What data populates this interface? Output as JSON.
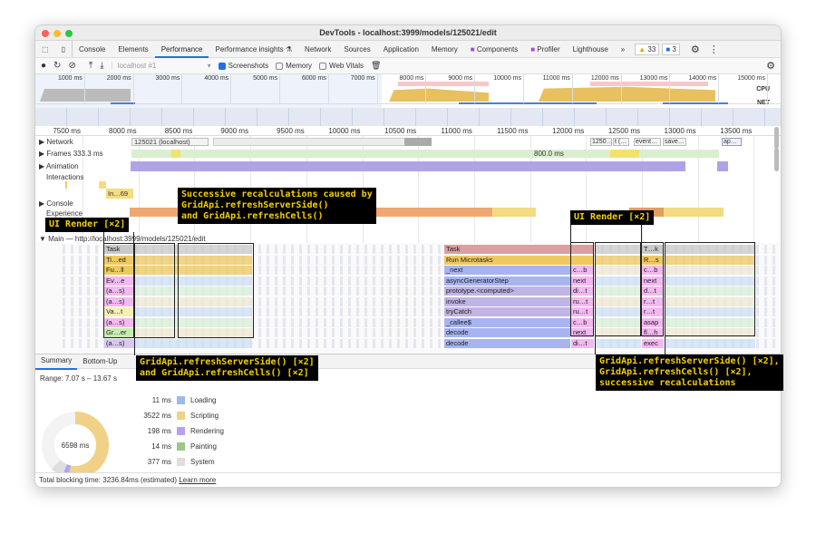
{
  "window": {
    "title": "DevTools - localhost:3999/models/125021/edit"
  },
  "tabs": [
    {
      "label": "Console"
    },
    {
      "label": "Elements"
    },
    {
      "label": "Performance",
      "active": true
    },
    {
      "label": "Performance insights"
    },
    {
      "label": "Network"
    },
    {
      "label": "Sources"
    },
    {
      "label": "Application"
    },
    {
      "label": "Memory"
    },
    {
      "label": "Components"
    },
    {
      "label": "Profiler"
    },
    {
      "label": "Lighthouse"
    }
  ],
  "badges": {
    "warnings": "33",
    "messages": "3",
    "more": "»"
  },
  "toolbar": {
    "profile_select": "localhost #1",
    "screenshots_label": "Screenshots",
    "screenshots_checked": true,
    "memory_label": "Memory",
    "memory_checked": false,
    "webvitals_label": "Web Vitals",
    "webvitals_checked": false
  },
  "overview": {
    "ticks": [
      "1000 ms",
      "2000 ms",
      "3000 ms",
      "4000 ms",
      "5000 ms",
      "6000 ms",
      "7000 ms",
      "8000 ms",
      "9000 ms",
      "10000 ms",
      "11000 ms",
      "12000 ms",
      "13000 ms",
      "14000 ms",
      "15000 ms"
    ],
    "cpu_label": "CPU",
    "net_label": "NET"
  },
  "ruler": {
    "ticks": [
      "7500 ms",
      "8000 ms",
      "8500 ms",
      "9000 ms",
      "9500 ms",
      "10000 ms",
      "10500 ms",
      "11000 ms",
      "11500 ms",
      "12000 ms",
      "12500 ms",
      "13000 ms",
      "13500 ms"
    ]
  },
  "tracks": {
    "network": "Network",
    "network_items": [
      "125021 (localhost)",
      "1250…",
      "t (…",
      "event…",
      "save…",
      "ap…"
    ],
    "frames": "Frames",
    "frames_value": "333.3 ms",
    "frames_value2": "800.0 ms",
    "animation": "Animation",
    "interactions": "Interactions",
    "interaction_item": "In…69",
    "console": "Console",
    "experience": "Experience",
    "main": "Main — http://localhost:3999/models/125021/edit"
  },
  "flame_left": [
    "Task",
    "Ti…ed",
    "Fu…ll",
    "Ev…e",
    "(a…s)",
    "(a…s)",
    "Va…t",
    "(a…s)",
    "Gr…er",
    "(a…s)"
  ],
  "flame_mid": [
    "Task",
    "Run Microtasks",
    "_next",
    "asyncGeneratorStep",
    "prototype.<computed>",
    "invoke",
    "tryCatch",
    "_callee$",
    "decode",
    "decode"
  ],
  "flame_r1": [
    "",
    "",
    "c…b",
    "next",
    "di…t",
    "ru…t",
    "ru…t",
    "c…b",
    "next",
    "di…t"
  ],
  "flame_r2": [
    "T…k",
    "R…s",
    "c…b",
    "next",
    "d…t",
    "r…t",
    "r…t",
    "asap",
    "fl…h",
    "exec"
  ],
  "bottom_tabs": [
    {
      "label": "Summary",
      "active": true
    },
    {
      "label": "Bottom-Up"
    }
  ],
  "summary": {
    "range": "Range: 7.07 s – 13.67 s",
    "total": "6598 ms",
    "categories": [
      {
        "value": "11 ms",
        "label": "Loading",
        "color": "#9dbbe8"
      },
      {
        "value": "3522 ms",
        "label": "Scripting",
        "color": "#f0d187"
      },
      {
        "value": "198 ms",
        "label": "Rendering",
        "color": "#b3a2ef"
      },
      {
        "value": "14 ms",
        "label": "Painting",
        "color": "#9fc48c"
      },
      {
        "value": "377 ms",
        "label": "System",
        "color": "#dedede"
      }
    ]
  },
  "footer": {
    "text": "Total blocking time: 3236.84ms (estimated)",
    "link": "Learn more"
  },
  "annotations": {
    "ui_render_left": "UI Render [×2]",
    "successive": "Successive recalculations caused by\nGridApi.refreshServerSide()\nand GridApi.refreshCells()",
    "refresh_left": "GridApi.refreshServerSide() [×2]\nand GridApi.refreshCells() [×2]",
    "ui_render_right": "UI Render [×2]",
    "refresh_right": "GridApi.refreshServerSide() [×2],\nGridApi.refreshCells() [×2],\nsuccessive recalculations"
  }
}
